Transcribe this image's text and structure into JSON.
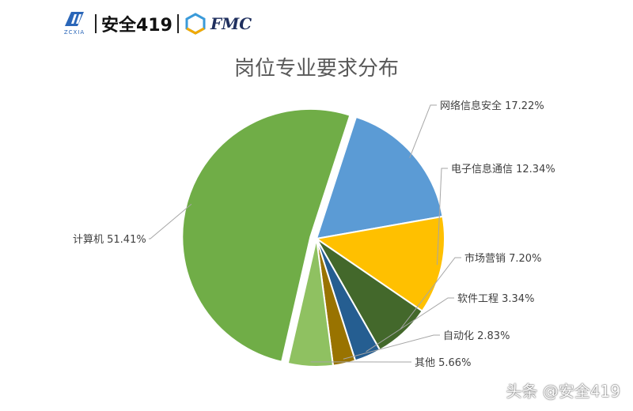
{
  "header": {
    "logo1_sub": "ZCXIA",
    "brand": "安全419",
    "fmc": "FMC"
  },
  "watermark": "头条 @安全419",
  "chart_data": {
    "type": "pie",
    "title": "岗位专业要求分布",
    "slices": [
      {
        "label": "网络信息安全",
        "value": 17.22,
        "text": "网络信息安全 17.22%",
        "color": "#5b9bd5"
      },
      {
        "label": "电子信息通信",
        "value": 12.34,
        "text": "电子信息通信 12.34%",
        "color": "#ffc000"
      },
      {
        "label": "市场营销",
        "value": 7.2,
        "text": "市场营销 7.20%",
        "color": "#43682b"
      },
      {
        "label": "软件工程",
        "value": 3.34,
        "text": "软件工程 3.34%",
        "color": "#255e91"
      },
      {
        "label": "自动化",
        "value": 2.83,
        "text": "自动化 2.83%",
        "color": "#997300"
      },
      {
        "label": "其他",
        "value": 5.66,
        "text": "其他 5.66%",
        "color": "#8fc161"
      },
      {
        "label": "计算机",
        "value": 51.41,
        "text": "计算机 51.41%",
        "color": "#70ad47"
      }
    ],
    "start_angle_deg": 18,
    "exploded": [
      "计算机"
    ]
  }
}
